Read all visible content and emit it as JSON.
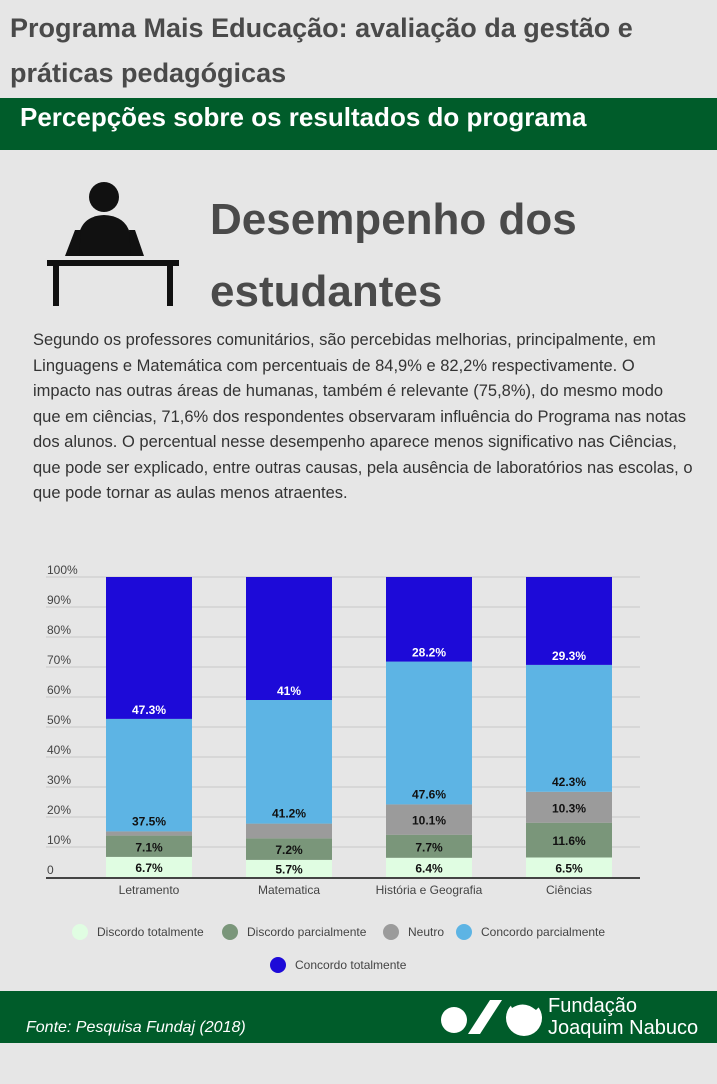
{
  "header": {
    "title": "Programa Mais Educação: avaliação da gestão e práticas pedagógicas",
    "section": "Percepções sobre os resultados do programa"
  },
  "topic": {
    "title": "Desempenho dos estudantes",
    "icon": "student-at-desk-icon"
  },
  "paragraph": "Segundo os professores comunitários, são percebidas melhorias, principalmente, em Linguagens e Matemática com percentuais de 84,9% e 82,2% respectivamente. O impacto nas outras áreas de humanas, também é relevante (75,8%), do mesmo modo que em ciências, 71,6% dos respondentes observaram influência do Programa nas notas dos alunos. O percentual nesse desempenho aparece menos significativo nas Ciências, que pode ser explicado, entre outras causas, pela ausência de laboratórios nas escolas, o que pode tornar as aulas menos atraentes.",
  "chart_data": {
    "type": "bar",
    "stacked": true,
    "categories": [
      "Letramento",
      "Matematica",
      "História e Geografia",
      "Ciências"
    ],
    "yticks": [
      "0",
      "10%",
      "20%",
      "30%",
      "40%",
      "50%",
      "60%",
      "70%",
      "80%",
      "90%",
      "100%"
    ],
    "ylim": [
      0,
      100
    ],
    "grid": true,
    "legend": "bottom",
    "series": [
      {
        "name": "Discordo totalmente",
        "color": "#e0fde2",
        "values": [
          6.7,
          5.7,
          6.4,
          6.5
        ],
        "labels": [
          "6.7%",
          "5.7%",
          "6.4%",
          "6.5%"
        ],
        "label_color": "#111"
      },
      {
        "name": "Discordo parcialmente",
        "color": "#7a967a",
        "values": [
          7.1,
          7.2,
          7.7,
          11.6
        ],
        "labels": [
          "7.1%",
          "7.2%",
          "7.7%",
          "11.6%"
        ],
        "label_color": "#111"
      },
      {
        "name": "Neutro",
        "color": "#9b9b9b",
        "values": [
          1.4,
          4.9,
          10.1,
          10.3
        ],
        "labels": [
          "",
          "",
          "10.1%",
          "10.3%"
        ],
        "label_color": "#111"
      },
      {
        "name": "Concordo parcialmente",
        "color": "#5db4e4",
        "values": [
          37.5,
          41.2,
          47.6,
          42.3
        ],
        "labels": [
          "37.5%",
          "41.2%",
          "47.6%",
          "42.3%"
        ],
        "label_color": "#111"
      },
      {
        "name": "Concordo totalmente",
        "color": "#1d0ad8",
        "values": [
          47.3,
          41,
          28.2,
          29.3
        ],
        "labels": [
          "47.3%",
          "41%",
          "28.2%",
          "29.3%"
        ],
        "label_color": "#fff"
      }
    ]
  },
  "footer": {
    "source": "Fonte: Pesquisa Fundaj (2018)",
    "logo_line1": "Fundação",
    "logo_line2": "Joaquim Nabuco"
  }
}
